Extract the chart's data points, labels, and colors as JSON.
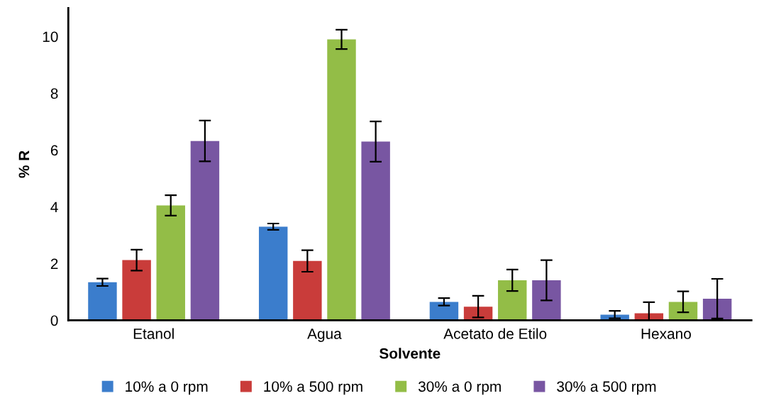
{
  "chart_data": {
    "type": "bar",
    "xlabel": "Solvente",
    "ylabel": "% R",
    "categories": [
      "Etanol",
      "Agua",
      "Acetato de Etilo",
      "Hexano"
    ],
    "series": [
      {
        "name": "10% a 0 rpm",
        "color": "#3b7dcc",
        "values": [
          1.34,
          3.3,
          0.65,
          0.2
        ],
        "errors": [
          0.13,
          0.11,
          0.13,
          0.13
        ]
      },
      {
        "name": "10% a 500 rpm",
        "color": "#c93c3a",
        "values": [
          2.12,
          2.09,
          0.48,
          0.25
        ],
        "errors": [
          0.37,
          0.38,
          0.38,
          0.39
        ]
      },
      {
        "name": "30% a 0 rpm",
        "color": "#93bd47",
        "values": [
          4.05,
          9.9,
          1.41,
          0.65
        ],
        "errors": [
          0.36,
          0.34,
          0.38,
          0.37
        ]
      },
      {
        "name": "30% a 500 rpm",
        "color": "#7856a2",
        "values": [
          6.32,
          6.3,
          1.41,
          0.76
        ],
        "errors": [
          0.72,
          0.71,
          0.71,
          0.7
        ]
      }
    ],
    "ylim": [
      0,
      11
    ],
    "yticks": [
      0,
      2,
      4,
      6,
      8,
      10
    ],
    "grid": false,
    "legend": "bottom"
  }
}
